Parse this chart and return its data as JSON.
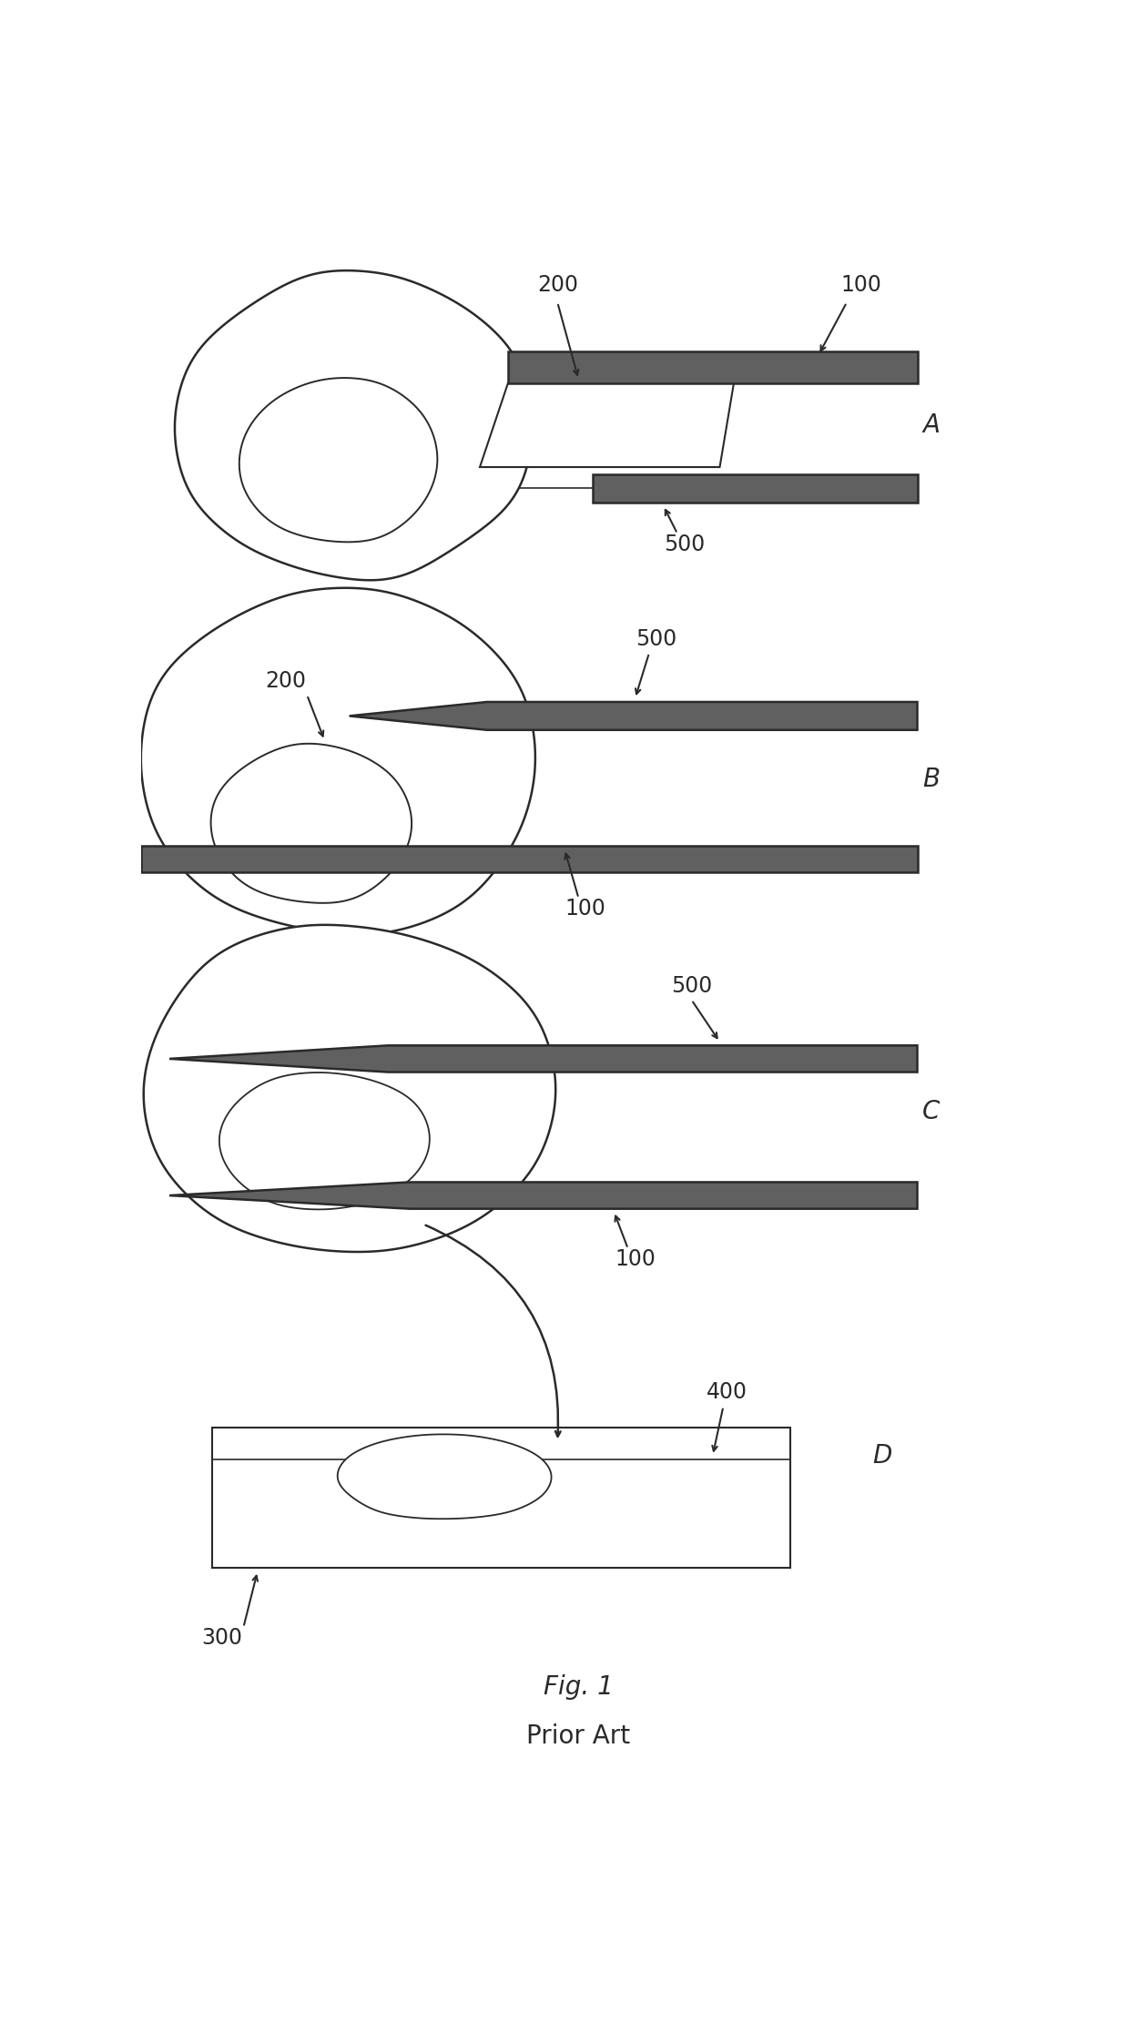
{
  "bg_color": "#ffffff",
  "line_color": "#2a2a2a",
  "dark_fill": "#606060",
  "dark_fill2": "#888888",
  "title": "Fig. 1",
  "subtitle": "Prior Art",
  "title_fontsize": 20,
  "label_fontsize": 18,
  "ref_fontsize": 17,
  "panel_A_label": "A",
  "panel_B_label": "B",
  "panel_C_label": "C",
  "panel_D_label": "D"
}
